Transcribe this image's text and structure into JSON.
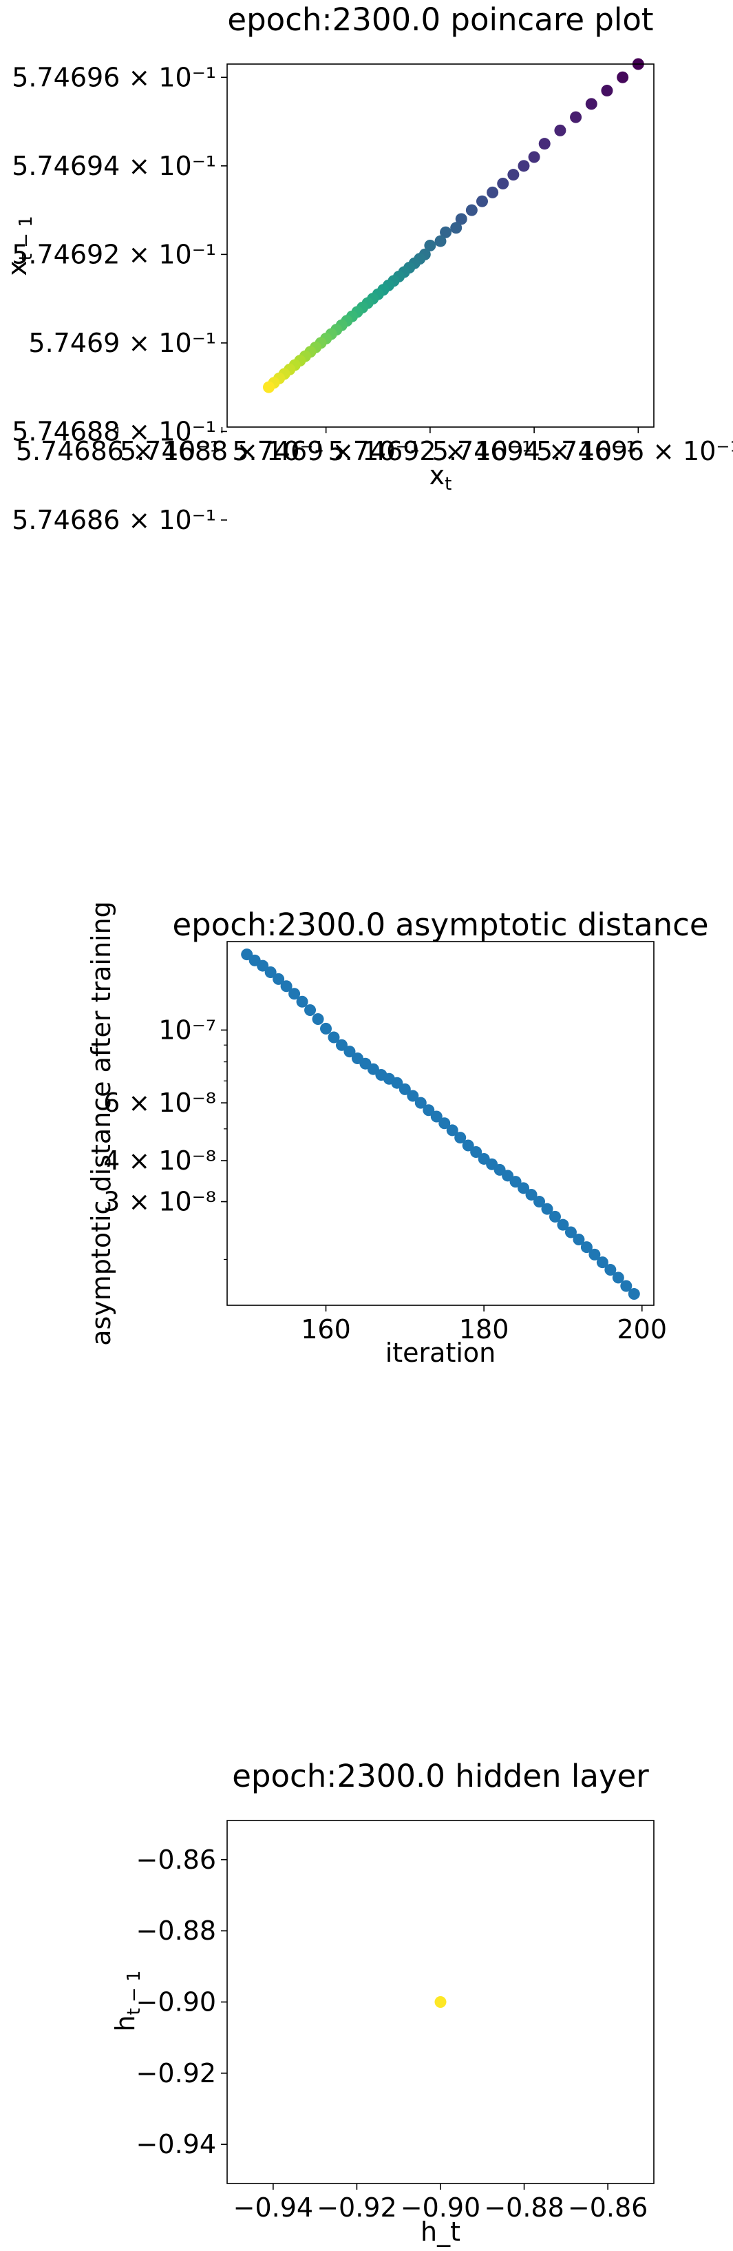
{
  "chart_data": [
    {
      "type": "scatter",
      "title": "epoch:2300.0 poincare plot",
      "xlabel": "x_t",
      "ylabel": "x_{t-1}",
      "log_scale": true,
      "colormap": "viridis",
      "color_by": "order",
      "n_points": 50,
      "x": [
        0.574696,
        0.5746957,
        0.5746954,
        0.5746951,
        0.5746948,
        0.5746945,
        0.5746942,
        0.574694,
        0.5746938,
        0.5746936,
        0.5746934,
        0.5746932,
        0.574693,
        0.5746928,
        0.5746926,
        0.5746925,
        0.5746923,
        0.5746922,
        0.574692,
        0.5746919,
        0.5746918,
        0.5746917,
        0.5746916,
        0.5746915,
        0.5746914,
        0.5746913,
        0.5746912,
        0.5746911,
        0.574691,
        0.5746909,
        0.5746908,
        0.5746907,
        0.5746906,
        0.5746905,
        0.5746904,
        0.5746903,
        0.5746902,
        0.5746901,
        0.57469,
        0.5746899,
        0.5746898,
        0.5746897,
        0.5746896,
        0.5746895,
        0.5746894,
        0.5746893,
        0.5746892,
        0.5746891,
        0.574689,
        0.5746889
      ],
      "y": [
        0.5746963,
        0.574696,
        0.5746957,
        0.5746954,
        0.5746951,
        0.5746948,
        0.5746945,
        0.5746942,
        0.574694,
        0.5746938,
        0.5746936,
        0.5746934,
        0.5746932,
        0.574693,
        0.5746928,
        0.5746926,
        0.5746925,
        0.5746923,
        0.5746922,
        0.574692,
        0.5746919,
        0.5746918,
        0.5746917,
        0.5746916,
        0.5746915,
        0.5746914,
        0.5746913,
        0.5746912,
        0.5746911,
        0.574691,
        0.5746909,
        0.5746908,
        0.5746907,
        0.5746906,
        0.5746905,
        0.5746904,
        0.5746903,
        0.5746902,
        0.5746901,
        0.57469,
        0.5746899,
        0.5746898,
        0.5746897,
        0.5746896,
        0.5746895,
        0.5746894,
        0.5746893,
        0.5746892,
        0.5746891,
        0.574689
      ],
      "xlim": [
        0.5746881,
        0.5746963
      ],
      "ylim": [
        0.5746881,
        0.5746963
      ],
      "yticks": [
        0.574686,
        0.574688,
        0.57469,
        0.574692,
        0.574694,
        0.574696
      ],
      "ytick_labels": [
        "5.74686 × 10⁻¹",
        "5.74688 × 10⁻¹",
        "5.7469 × 10⁻¹",
        "5.74692 × 10⁻¹",
        "5.74694 × 10⁻¹",
        "5.74696 × 10⁻¹"
      ],
      "xticks": [
        0.574686,
        0.574688,
        0.57469,
        0.574692,
        0.574694,
        0.574696
      ],
      "xtick_labels": [
        "5.74686 × 10⁻¹",
        "5.74688 × 10⁻¹",
        "5.7469 × 10⁻¹",
        "5.74692 × 10⁻¹",
        "5.74694 × 10⁻¹",
        "5.74696 × 10⁻¹"
      ],
      "grid": false
    },
    {
      "type": "scatter",
      "title": "epoch:2300.0 asymptotic distance",
      "xlabel": "iteration",
      "ylabel": "asymptotic distance after training",
      "y_scale": "log",
      "color": "#1f77b4",
      "x": [
        150,
        151,
        152,
        153,
        154,
        155,
        156,
        157,
        158,
        159,
        160,
        161,
        162,
        163,
        164,
        165,
        166,
        167,
        168,
        169,
        170,
        171,
        172,
        173,
        174,
        175,
        176,
        177,
        178,
        179,
        180,
        181,
        182,
        183,
        184,
        185,
        186,
        187,
        188,
        189,
        190,
        191,
        192,
        193,
        194,
        195,
        196,
        197,
        198,
        199
      ],
      "y": [
        1.7e-07,
        1.63e-07,
        1.57e-07,
        1.5e-07,
        1.43e-07,
        1.36e-07,
        1.29e-07,
        1.22e-07,
        1.15e-07,
        1.08e-07,
        1.01e-07,
        9.5e-08,
        9e-08,
        8.6e-08,
        8.2e-08,
        7.9e-08,
        7.6e-08,
        7.3e-08,
        7.1e-08,
        6.9e-08,
        6.6e-08,
        6.3e-08,
        6e-08,
        5.7e-08,
        5.45e-08,
        5.2e-08,
        4.95e-08,
        4.7e-08,
        4.45e-08,
        4.25e-08,
        4.05e-08,
        3.9e-08,
        3.75e-08,
        3.6e-08,
        3.45e-08,
        3.3e-08,
        3.15e-08,
        3e-08,
        2.85e-08,
        2.7e-08,
        2.55e-08,
        2.42e-08,
        2.3e-08,
        2.18e-08,
        2.07e-08,
        1.96e-08,
        1.86e-08,
        1.76e-08,
        1.66e-08,
        1.57e-08
      ],
      "xlim": [
        147.5,
        201.5
      ],
      "ylim": [
        1.45e-08,
        1.86e-07
      ],
      "xticks": [
        160,
        180,
        200
      ],
      "xtick_labels": [
        "160",
        "180",
        "200"
      ],
      "yticks": [
        1e-07,
        6e-08,
        4e-08,
        3e-08
      ],
      "ytick_labels": [
        "10⁻⁷",
        "6 × 10⁻⁸",
        "4 × 10⁻⁸",
        "3 × 10⁻⁸"
      ],
      "grid": false
    },
    {
      "type": "scatter",
      "title": "epoch:2300.0 hidden layer",
      "xlabel": "h_t",
      "ylabel": "h_{t-1}",
      "point_color": "#fde725",
      "x": [
        -0.9
      ],
      "y": [
        -0.9
      ],
      "xlim": [
        -0.951,
        -0.849
      ],
      "ylim": [
        -0.951,
        -0.849
      ],
      "xticks": [
        -0.94,
        -0.92,
        -0.9,
        -0.88,
        -0.86
      ],
      "xtick_labels": [
        "−0.94",
        "−0.92",
        "−0.90",
        "−0.88",
        "−0.86"
      ],
      "yticks": [
        -0.86,
        -0.88,
        -0.9,
        -0.92,
        -0.94
      ],
      "ytick_labels": [
        "−0.86",
        "−0.88",
        "−0.90",
        "−0.92",
        "−0.94"
      ],
      "grid": false
    }
  ]
}
